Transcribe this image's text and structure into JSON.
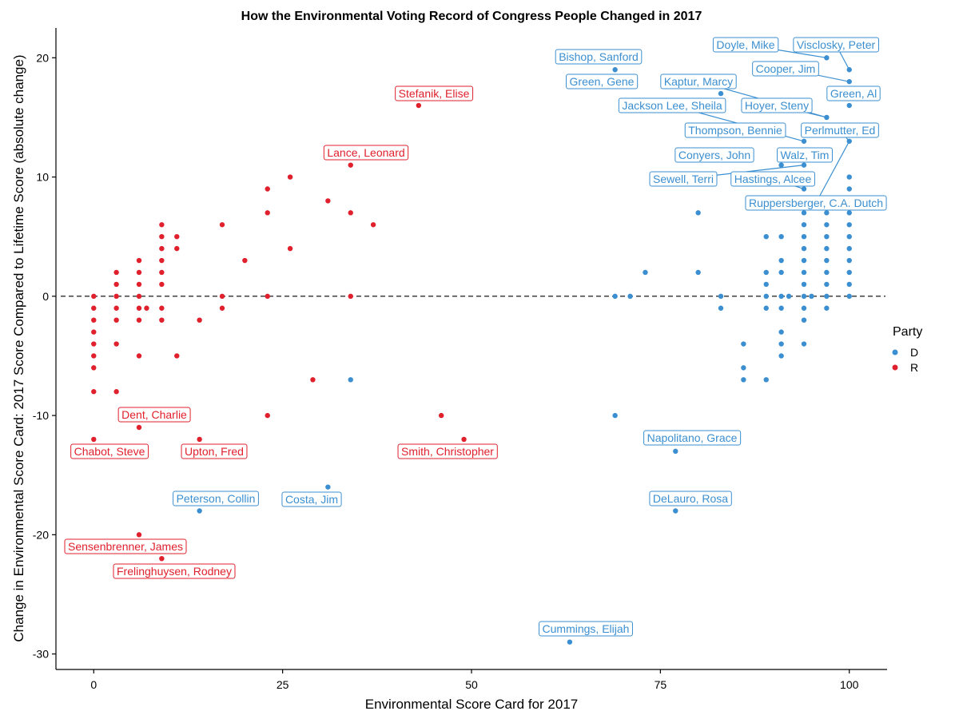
{
  "chart_data": {
    "type": "scatter",
    "title": "How the Environmental Voting Record of Congress People Changed in 2017",
    "xlabel": "Environmental Score Card for 2017",
    "ylabel": "Change in Environmental Score Card: 2017 Score Compared to Lifetime Score (absolute change)",
    "xlim": [
      -5,
      105
    ],
    "ylim": [
      -31.3,
      22.5
    ],
    "x_ticks": [
      0,
      25,
      50,
      75,
      100
    ],
    "y_ticks": [
      -30,
      -20,
      -10,
      0,
      10,
      20
    ],
    "reference_line": {
      "y": 0,
      "style": "dashed"
    },
    "grid": false,
    "legend": {
      "title": "Party",
      "position": "right",
      "entries": [
        {
          "label": "D",
          "color": "#3b8fd0"
        },
        {
          "label": "R",
          "color": "#e0202c"
        }
      ]
    },
    "series": [
      {
        "name": "D",
        "color": "#3b8fd0",
        "points": [
          [
            100,
            19
          ],
          [
            100,
            18
          ],
          [
            100,
            16
          ],
          [
            100,
            13
          ],
          [
            100,
            10
          ],
          [
            100,
            9
          ],
          [
            100,
            8
          ],
          [
            100,
            7
          ],
          [
            100,
            6
          ],
          [
            100,
            5
          ],
          [
            100,
            4
          ],
          [
            100,
            3
          ],
          [
            100,
            2
          ],
          [
            100,
            1
          ],
          [
            100,
            0
          ],
          [
            97,
            20
          ],
          [
            97,
            15
          ],
          [
            97,
            8
          ],
          [
            97,
            7
          ],
          [
            97,
            6
          ],
          [
            97,
            5
          ],
          [
            97,
            4
          ],
          [
            97,
            3
          ],
          [
            97,
            2
          ],
          [
            97,
            1
          ],
          [
            97,
            0
          ],
          [
            97,
            -1
          ],
          [
            94,
            13
          ],
          [
            94,
            11
          ],
          [
            94,
            9
          ],
          [
            94,
            7
          ],
          [
            94,
            6
          ],
          [
            94,
            5
          ],
          [
            94,
            4
          ],
          [
            94,
            3
          ],
          [
            94,
            2
          ],
          [
            94,
            1
          ],
          [
            94,
            0
          ],
          [
            94,
            -1
          ],
          [
            94,
            -2
          ],
          [
            94,
            -4
          ],
          [
            91,
            11
          ],
          [
            91,
            5
          ],
          [
            91,
            3
          ],
          [
            91,
            2
          ],
          [
            91,
            0
          ],
          [
            91,
            -1
          ],
          [
            91,
            -3
          ],
          [
            91,
            -4
          ],
          [
            91,
            -5
          ],
          [
            95,
            0
          ],
          [
            92,
            0
          ],
          [
            89,
            5
          ],
          [
            89,
            2
          ],
          [
            89,
            1
          ],
          [
            89,
            0
          ],
          [
            89,
            -1
          ],
          [
            89,
            -7
          ],
          [
            86,
            -4
          ],
          [
            86,
            -6
          ],
          [
            86,
            -7
          ],
          [
            83,
            17
          ],
          [
            83,
            0
          ],
          [
            83,
            -1
          ],
          [
            80,
            7
          ],
          [
            80,
            2
          ],
          [
            77,
            -13
          ],
          [
            77,
            -18
          ],
          [
            73,
            2
          ],
          [
            71,
            0
          ],
          [
            69,
            19
          ],
          [
            69,
            0
          ],
          [
            69,
            -10
          ],
          [
            63,
            -29
          ],
          [
            34,
            -7
          ],
          [
            31,
            -16
          ],
          [
            14,
            -18
          ]
        ]
      },
      {
        "name": "R",
        "color": "#e0202c",
        "points": [
          [
            0,
            0
          ],
          [
            0,
            -1
          ],
          [
            0,
            -2
          ],
          [
            0,
            -3
          ],
          [
            0,
            -4
          ],
          [
            0,
            -5
          ],
          [
            0,
            -6
          ],
          [
            0,
            -8
          ],
          [
            0,
            -12
          ],
          [
            3,
            2
          ],
          [
            3,
            1
          ],
          [
            3,
            0
          ],
          [
            3,
            -1
          ],
          [
            3,
            -2
          ],
          [
            3,
            -4
          ],
          [
            3,
            -8
          ],
          [
            6,
            3
          ],
          [
            6,
            2
          ],
          [
            6,
            1
          ],
          [
            6,
            0
          ],
          [
            6,
            -1
          ],
          [
            6,
            -2
          ],
          [
            6,
            -5
          ],
          [
            6,
            -11
          ],
          [
            6,
            -20
          ],
          [
            7,
            -1
          ],
          [
            9,
            6
          ],
          [
            9,
            5
          ],
          [
            9,
            4
          ],
          [
            9,
            3
          ],
          [
            9,
            2
          ],
          [
            9,
            1
          ],
          [
            9,
            -1
          ],
          [
            9,
            -2
          ],
          [
            9,
            -22
          ],
          [
            11,
            5
          ],
          [
            11,
            4
          ],
          [
            11,
            -5
          ],
          [
            14,
            -2
          ],
          [
            14,
            -12
          ],
          [
            17,
            6
          ],
          [
            17,
            0
          ],
          [
            17,
            -1
          ],
          [
            20,
            3
          ],
          [
            23,
            9
          ],
          [
            23,
            7
          ],
          [
            23,
            0
          ],
          [
            23,
            -10
          ],
          [
            26,
            10
          ],
          [
            26,
            4
          ],
          [
            29,
            -7
          ],
          [
            31,
            8
          ],
          [
            34,
            11
          ],
          [
            34,
            7
          ],
          [
            34,
            0
          ],
          [
            37,
            6
          ],
          [
            43,
            16
          ],
          [
            46,
            -10
          ],
          [
            49,
            -12
          ]
        ]
      }
    ],
    "annotations": [
      {
        "text": "Bishop, Sanford",
        "x": 69,
        "y": 19,
        "party": "D"
      },
      {
        "text": "Doyle, Mike",
        "x": 97,
        "y": 20,
        "party": "D"
      },
      {
        "text": "Visclosky, Peter",
        "x": 100,
        "y": 19,
        "party": "D"
      },
      {
        "text": "Cooper, Jim",
        "x": 100,
        "y": 18,
        "party": "D"
      },
      {
        "text": "Green, Gene",
        "x": 69,
        "y": 19,
        "party": "D"
      },
      {
        "text": "Kaptur, Marcy",
        "x": 97,
        "y": 15,
        "party": "D"
      },
      {
        "text": "Green, Al",
        "x": 100,
        "y": 16,
        "party": "D"
      },
      {
        "text": "Jackson Lee, Sheila",
        "x": 94,
        "y": 13,
        "party": "D"
      },
      {
        "text": "Hoyer, Steny",
        "x": 97,
        "y": 15,
        "party": "D"
      },
      {
        "text": "Thompson, Bennie",
        "x": 94,
        "y": 13,
        "party": "D"
      },
      {
        "text": "Perlmutter, Ed",
        "x": 100,
        "y": 13,
        "party": "D"
      },
      {
        "text": "Conyers, John",
        "x": 91,
        "y": 11,
        "party": "D"
      },
      {
        "text": "Walz, Tim",
        "x": 94,
        "y": 11,
        "party": "D"
      },
      {
        "text": "Sewell, Terri",
        "x": 94,
        "y": 11,
        "party": "D"
      },
      {
        "text": "Hastings, Alcee",
        "x": 94,
        "y": 9,
        "party": "D"
      },
      {
        "text": "Ruppersberger, C.A. Dutch",
        "x": 100,
        "y": 13,
        "party": "D"
      },
      {
        "text": "Stefanik, Elise",
        "x": 43,
        "y": 16,
        "party": "R"
      },
      {
        "text": "Lance, Leonard",
        "x": 34,
        "y": 11,
        "party": "R"
      },
      {
        "text": "Dent, Charlie",
        "x": 6,
        "y": -11,
        "party": "R"
      },
      {
        "text": "Chabot, Steve",
        "x": 0,
        "y": -12,
        "party": "R"
      },
      {
        "text": "Upton, Fred",
        "x": 14,
        "y": -12,
        "party": "R"
      },
      {
        "text": "Smith, Christopher",
        "x": 49,
        "y": -12,
        "party": "R"
      },
      {
        "text": "Peterson, Collin",
        "x": 14,
        "y": -18,
        "party": "D"
      },
      {
        "text": "Costa, Jim",
        "x": 31,
        "y": -16,
        "party": "D"
      },
      {
        "text": "Napolitano, Grace",
        "x": 77,
        "y": -13,
        "party": "D"
      },
      {
        "text": "DeLauro, Rosa",
        "x": 77,
        "y": -18,
        "party": "D"
      },
      {
        "text": "Sensenbrenner, James",
        "x": 6,
        "y": -20,
        "party": "R"
      },
      {
        "text": "Frelinghuysen, Rodney",
        "x": 9,
        "y": -22,
        "party": "R"
      },
      {
        "text": "Cummings, Elijah",
        "x": 63,
        "y": -29,
        "party": "D"
      }
    ]
  }
}
